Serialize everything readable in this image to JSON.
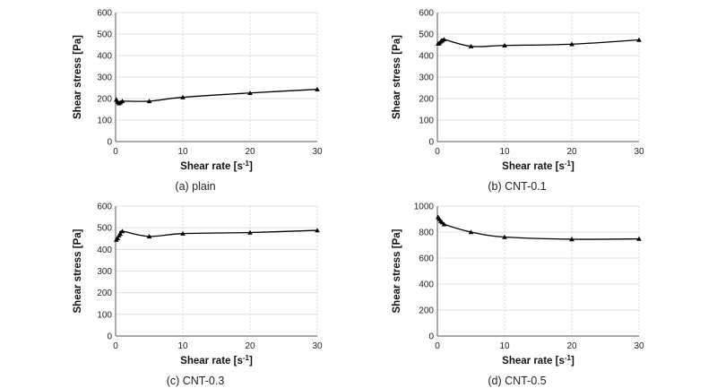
{
  "chart_data": [
    {
      "type": "line",
      "caption": "(a)  plain",
      "xlabel": "Shear rate [s",
      "xlabel_sup": "-1",
      "xlabel_end": "]",
      "ylabel": "Shear stress [Pa]",
      "xlim": [
        0,
        30
      ],
      "ylim": [
        0,
        600
      ],
      "xticks": [
        0,
        10,
        20,
        30
      ],
      "yticks": [
        0,
        100,
        200,
        300,
        400,
        500,
        600
      ],
      "x": [
        0.1,
        0.3,
        0.5,
        0.7,
        1,
        5,
        10,
        20,
        30
      ],
      "y": [
        195,
        185,
        178,
        182,
        188,
        188,
        206,
        226,
        243
      ]
    },
    {
      "type": "line",
      "caption": "(b)  CNT-0.1",
      "xlabel": "Shear rate [s",
      "xlabel_sup": "-1",
      "xlabel_end": "]",
      "ylabel": "Shear stress [Pa]",
      "xlim": [
        0,
        30
      ],
      "ylim": [
        0,
        600
      ],
      "xticks": [
        0,
        10,
        20,
        30
      ],
      "yticks": [
        0,
        100,
        200,
        300,
        400,
        500,
        600
      ],
      "x": [
        0.1,
        0.3,
        0.5,
        0.7,
        1,
        5,
        10,
        20,
        30
      ],
      "y": [
        455,
        458,
        465,
        470,
        475,
        443,
        447,
        453,
        473
      ]
    },
    {
      "type": "line",
      "caption": "(c)  CNT-0.3",
      "xlabel": "Shear rate [s",
      "xlabel_sup": "-1",
      "xlabel_end": "]",
      "ylabel": "Shear stress [Pa]",
      "xlim": [
        0,
        30
      ],
      "ylim": [
        0,
        600
      ],
      "xticks": [
        0,
        10,
        20,
        30
      ],
      "yticks": [
        0,
        100,
        200,
        300,
        400,
        500,
        600
      ],
      "x": [
        0.1,
        0.3,
        0.5,
        0.7,
        1,
        5,
        10,
        20,
        30
      ],
      "y": [
        445,
        452,
        465,
        472,
        484,
        460,
        473,
        478,
        488
      ]
    },
    {
      "type": "line",
      "caption": "(d)  CNT-0.5",
      "xlabel": "Shear rate [s",
      "xlabel_sup": "-1",
      "xlabel_end": "]",
      "ylabel": "Shear stress [Pa]",
      "xlim": [
        0,
        30
      ],
      "ylim": [
        0,
        1000
      ],
      "xticks": [
        0,
        10,
        20,
        30
      ],
      "yticks": [
        0,
        200,
        400,
        600,
        800,
        1000
      ],
      "x": [
        0.1,
        0.3,
        0.5,
        0.7,
        1,
        5,
        10,
        20,
        30
      ],
      "y": [
        915,
        900,
        885,
        875,
        860,
        800,
        762,
        745,
        748
      ]
    }
  ]
}
